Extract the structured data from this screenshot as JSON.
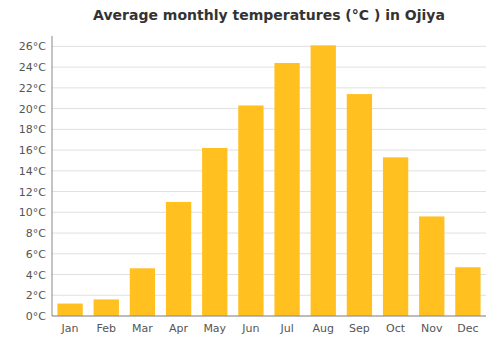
{
  "chart_data": {
    "type": "bar",
    "title": "Average monthly temperatures (°C ) in Ojiya",
    "categories": [
      "Jan",
      "Feb",
      "Mar",
      "Apr",
      "May",
      "Jun",
      "Jul",
      "Aug",
      "Sep",
      "Oct",
      "Nov",
      "Dec"
    ],
    "values": [
      1.2,
      1.6,
      4.6,
      11.0,
      16.2,
      20.3,
      24.4,
      26.1,
      21.4,
      15.3,
      9.6,
      4.7
    ],
    "color": "#FFC020",
    "ylim": [
      0,
      27
    ],
    "yticks": [
      {
        "value": 0,
        "label": "0°C"
      },
      {
        "value": 2,
        "label": "2°C"
      },
      {
        "value": 4,
        "label": "4°C"
      },
      {
        "value": 6,
        "label": "6°C"
      },
      {
        "value": 8,
        "label": "8°C"
      },
      {
        "value": 10,
        "label": "10°C"
      },
      {
        "value": 12,
        "label": "12°C"
      },
      {
        "value": 14,
        "label": "14°C"
      },
      {
        "value": 16,
        "label": "16°C"
      },
      {
        "value": 18,
        "label": "18°C"
      },
      {
        "value": 20,
        "label": "20°C"
      },
      {
        "value": 22,
        "label": "22°C"
      },
      {
        "value": 24,
        "label": "24°C"
      },
      {
        "value": 26,
        "label": "26°C"
      }
    ],
    "grid": true
  }
}
